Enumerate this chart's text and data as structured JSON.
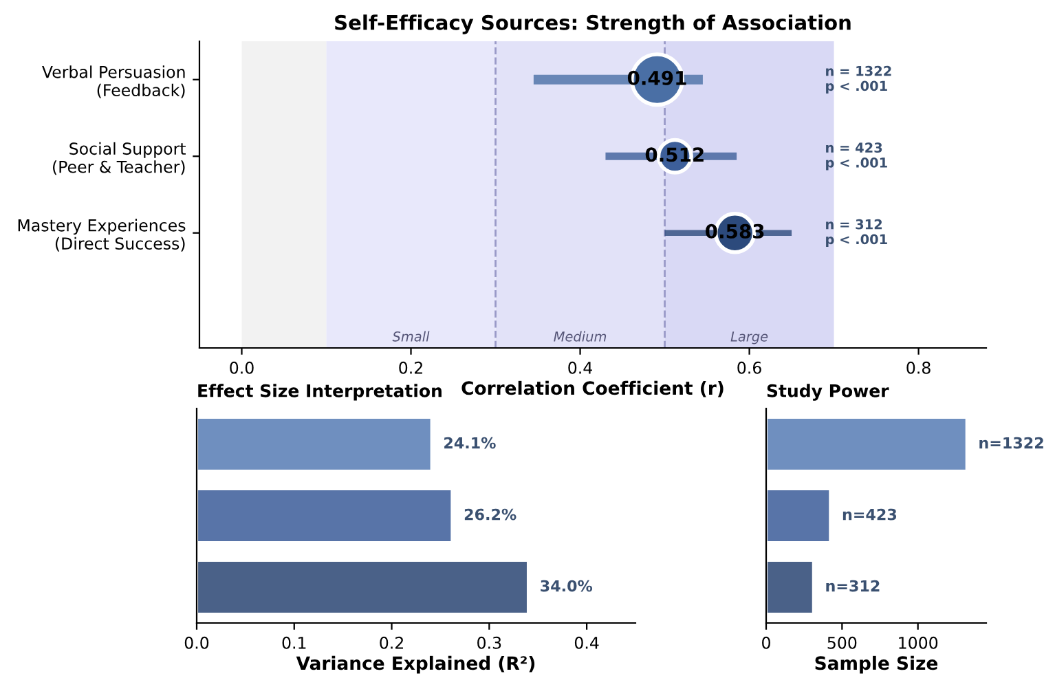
{
  "chart_data": [
    {
      "type": "bubble",
      "orientation": "horizontal",
      "title": "Self-Efficacy Sources: Strength of Association",
      "xlabel": "Correlation Coefficient (r)",
      "categories": [
        "Verbal Persuasion\n(Feedback)",
        "Social Support\n(Peer & Teacher)",
        "Mastery Experiences\n(Direct Success)"
      ],
      "values": [
        0.491,
        0.512,
        0.583
      ],
      "sizes": [
        1,
        0.42,
        0.58
      ],
      "colors": [
        "#4a6fa5",
        "#3d5f9a",
        "#2c4a7c"
      ],
      "errors": [
        [
          0.345,
          0.545
        ],
        [
          0.43,
          0.585
        ],
        [
          0.5,
          0.65
        ]
      ],
      "data_labels": true,
      "xlim": [
        -0.05,
        0.88
      ],
      "xticks": [
        {
          "value": 0,
          "label": "0.0"
        },
        0.2,
        0.4,
        0.6,
        0.8
      ],
      "bands": [
        {
          "axis": "x",
          "from": 0.0,
          "to": 0.1,
          "label": null,
          "color": "#f2f2f2"
        },
        {
          "axis": "x",
          "from": 0.1,
          "to": 0.3,
          "label": "Small",
          "color": "#e8e8fb"
        },
        {
          "axis": "x",
          "from": 0.3,
          "to": 0.5,
          "label": "Medium",
          "color": "#e2e2f8"
        },
        {
          "axis": "x",
          "from": 0.5,
          "to": 0.7,
          "label": "Large",
          "color": "#d9d9f5"
        }
      ],
      "ref_lines": [
        {
          "axis": "x",
          "value": 0.3,
          "label": null,
          "line_style": "dashed",
          "color": "#9a9ac8"
        },
        {
          "axis": "x",
          "value": 0.5,
          "label": null,
          "line_style": "dashed",
          "color": "#9a9ac8"
        }
      ],
      "annotations": [
        "n = 1322\np < .001",
        "n = 423\np < .001",
        "n = 312\np < .001"
      ],
      "grid": false,
      "legend": false
    },
    {
      "type": "bar",
      "orientation": "horizontal",
      "title": "Effect Size Interpretation",
      "xlabel": "Variance Explained (R²)",
      "categories": [
        null,
        null,
        null
      ],
      "values": [
        0.241,
        0.262,
        0.34
      ],
      "value_labels": [
        "24.1%",
        "26.2%",
        "34.0%"
      ],
      "colors": [
        "#6f8fbf",
        "#5874a8",
        "#4a6188"
      ],
      "xlim": [
        0,
        0.45
      ],
      "xticks": [
        {
          "value": 0,
          "label": "0.0"
        },
        0.1,
        0.2,
        0.3,
        0.4
      ],
      "grid": false,
      "legend": false
    },
    {
      "type": "bar",
      "orientation": "horizontal",
      "title": "Study Power",
      "xlabel": "Sample Size",
      "categories": [
        null,
        null,
        null
      ],
      "values": [
        1322,
        423,
        312
      ],
      "value_labels": [
        "n=1322",
        "n=423",
        "n=312"
      ],
      "colors": [
        "#6f8fbf",
        "#5874a8",
        "#4a6188"
      ],
      "xlim": [
        0,
        1450
      ],
      "xticks": [
        0,
        500,
        1000
      ],
      "grid": false,
      "legend": false
    }
  ]
}
